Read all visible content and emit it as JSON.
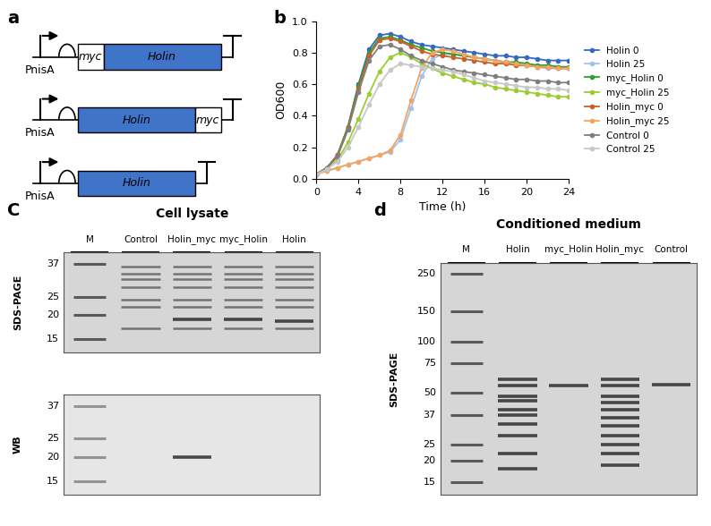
{
  "panel_labels": [
    "a",
    "b",
    "C",
    "d"
  ],
  "diagram": {
    "constructs": [
      {
        "promoter": "PnisA",
        "parts": [
          "myc",
          "Holin"
        ]
      },
      {
        "promoter": "PnisA",
        "parts": [
          "Holin",
          "myc"
        ]
      },
      {
        "promoter": "PnisA",
        "parts": [
          "Holin"
        ]
      }
    ]
  },
  "chart_data": {
    "type": "line",
    "x_label": "Time (h)",
    "y_label": "OD600",
    "x": [
      0,
      1,
      2,
      3,
      4,
      5,
      6,
      7,
      8,
      9,
      10,
      11,
      12,
      13,
      14,
      15,
      16,
      17,
      18,
      19,
      20,
      21,
      22,
      23,
      24
    ],
    "xlim": [
      0,
      24
    ],
    "xticks": [
      0,
      4,
      8,
      12,
      16,
      20,
      24
    ],
    "ylim": [
      0,
      1.0
    ],
    "yticks": [
      {
        "value": 0,
        "label": "0.0"
      },
      0.2,
      0.4,
      0.6,
      0.8,
      {
        "value": 1.0,
        "label": "1.0"
      }
    ],
    "marker": "o",
    "line_style": "solid",
    "legend": "right",
    "series": [
      {
        "name": "Holin 0",
        "color": "#3567c4",
        "values": [
          0.03,
          0.07,
          0.15,
          0.33,
          0.6,
          0.82,
          0.91,
          0.92,
          0.9,
          0.87,
          0.85,
          0.84,
          0.83,
          0.82,
          0.81,
          0.8,
          0.79,
          0.78,
          0.78,
          0.77,
          0.77,
          0.76,
          0.75,
          0.75,
          0.75
        ]
      },
      {
        "name": "Holin 25",
        "color": "#9fc3ec",
        "values": [
          0.03,
          0.05,
          0.07,
          0.09,
          0.11,
          0.13,
          0.15,
          0.17,
          0.25,
          0.45,
          0.65,
          0.76,
          0.79,
          0.79,
          0.78,
          0.77,
          0.76,
          0.75,
          0.74,
          0.73,
          0.72,
          0.71,
          0.7,
          0.7,
          0.7
        ]
      },
      {
        "name": "myc_Holin 0",
        "color": "#2ca02c",
        "values": [
          0.03,
          0.07,
          0.15,
          0.33,
          0.59,
          0.8,
          0.89,
          0.9,
          0.88,
          0.85,
          0.83,
          0.81,
          0.8,
          0.79,
          0.78,
          0.77,
          0.76,
          0.75,
          0.74,
          0.74,
          0.73,
          0.72,
          0.72,
          0.71,
          0.71
        ]
      },
      {
        "name": "myc_Holin 25",
        "color": "#9acd32",
        "values": [
          0.03,
          0.06,
          0.12,
          0.23,
          0.38,
          0.54,
          0.68,
          0.77,
          0.8,
          0.77,
          0.73,
          0.7,
          0.67,
          0.65,
          0.63,
          0.61,
          0.6,
          0.58,
          0.57,
          0.56,
          0.55,
          0.54,
          0.53,
          0.52,
          0.52
        ]
      },
      {
        "name": "Holin_myc 0",
        "color": "#c8602a",
        "values": [
          0.03,
          0.07,
          0.15,
          0.32,
          0.57,
          0.78,
          0.88,
          0.89,
          0.87,
          0.84,
          0.81,
          0.79,
          0.78,
          0.77,
          0.76,
          0.75,
          0.74,
          0.73,
          0.73,
          0.72,
          0.72,
          0.71,
          0.71,
          0.7,
          0.7
        ]
      },
      {
        "name": "Holin_myc 25",
        "color": "#f4a460",
        "values": [
          0.03,
          0.05,
          0.07,
          0.09,
          0.11,
          0.13,
          0.15,
          0.18,
          0.28,
          0.5,
          0.7,
          0.8,
          0.82,
          0.81,
          0.79,
          0.77,
          0.76,
          0.75,
          0.74,
          0.73,
          0.72,
          0.71,
          0.71,
          0.7,
          0.7
        ]
      },
      {
        "name": "Control 0",
        "color": "#7f7f7f",
        "values": [
          0.03,
          0.07,
          0.14,
          0.31,
          0.55,
          0.75,
          0.84,
          0.85,
          0.82,
          0.78,
          0.75,
          0.73,
          0.71,
          0.69,
          0.68,
          0.67,
          0.66,
          0.65,
          0.64,
          0.63,
          0.63,
          0.62,
          0.62,
          0.61,
          0.61
        ]
      },
      {
        "name": "Control 25",
        "color": "#c8c8c8",
        "values": [
          0.03,
          0.06,
          0.11,
          0.2,
          0.33,
          0.47,
          0.6,
          0.69,
          0.73,
          0.72,
          0.71,
          0.7,
          0.69,
          0.68,
          0.66,
          0.64,
          0.62,
          0.61,
          0.6,
          0.59,
          0.58,
          0.58,
          0.57,
          0.57,
          0.56
        ]
      }
    ]
  },
  "gels": [
    {
      "title": "Cell lysate",
      "lanes": [
        "M",
        "Control",
        "Holin_myc",
        "myc_Holin",
        "Holin"
      ],
      "blots": [
        {
          "label": "SDS-PAGE",
          "markers": [
            37,
            25,
            20,
            15
          ],
          "sample_bands": [
            36,
            33,
            31,
            28,
            24,
            22,
            17
          ],
          "lane_bands": [
            {
              "lane": "Holin_myc",
              "kDa": [
                19
              ]
            },
            {
              "lane": "myc_Holin",
              "kDa": [
                19
              ]
            },
            {
              "lane": "Holin",
              "kDa": [
                18.5
              ]
            }
          ]
        },
        {
          "label": "WB",
          "markers": [
            37,
            25,
            20,
            15
          ],
          "sample_bands": [],
          "lane_bands": [
            {
              "lane": "Holin_myc",
              "kDa": [
                20
              ]
            }
          ]
        }
      ]
    },
    {
      "title": "Conditioned medium",
      "lanes": [
        "M",
        "Holin",
        "myc_Holin",
        "Holin_myc",
        "Control"
      ],
      "blots": [
        {
          "label": "SDS-PAGE",
          "markers": [
            250,
            150,
            100,
            75,
            50,
            37,
            25,
            20,
            15
          ],
          "sample_bands": [],
          "lane_bands": [
            {
              "lane": "Holin",
              "kDa": [
                60,
                55,
                48,
                45,
                40,
                37,
                33,
                28,
                22,
                18
              ]
            },
            {
              "lane": "myc_Holin",
              "kDa": [
                55
              ]
            },
            {
              "lane": "Holin_myc",
              "kDa": [
                60,
                55,
                48,
                44,
                40,
                36,
                32,
                28,
                25,
                22,
                19
              ]
            },
            {
              "lane": "Control",
              "kDa": [
                56
              ]
            }
          ]
        }
      ]
    }
  ]
}
